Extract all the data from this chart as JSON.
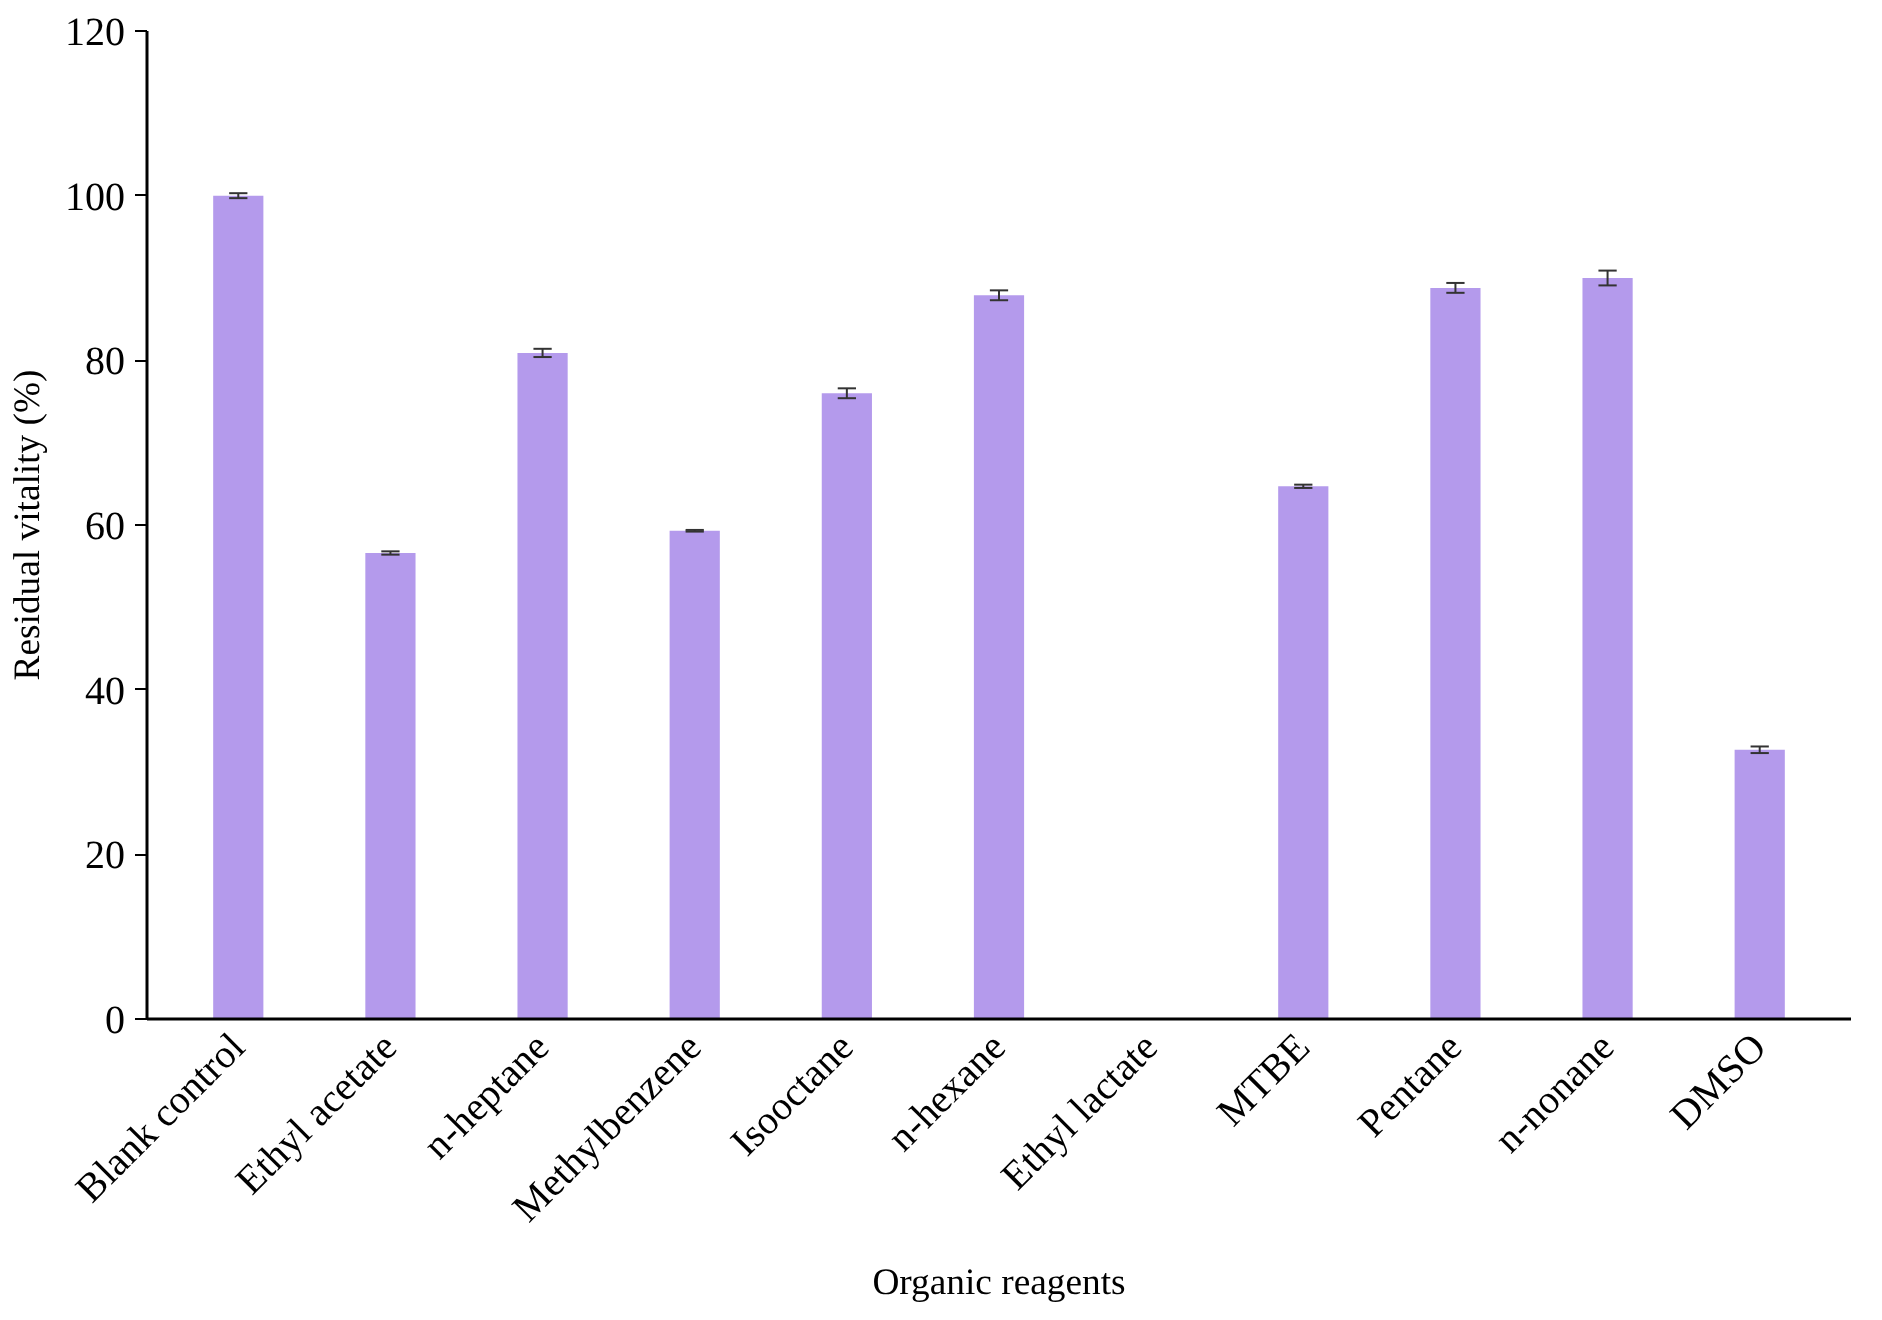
{
  "chart_data": {
    "type": "bar",
    "xlabel": "Organic reagents",
    "ylabel": "Residual vitality (%)",
    "categories": [
      "Blank control",
      "Ethyl acetate",
      "n-heptane",
      "Methylbenzene",
      "Isooctane",
      "n-hexane",
      "Ethyl lactate",
      "MTBE",
      "Pentane",
      "n-nonane",
      "DMSO"
    ],
    "values": [
      100,
      56.6,
      80.9,
      59.3,
      76.0,
      87.9,
      0,
      64.7,
      88.8,
      90.0,
      32.7
    ],
    "errors": [
      0.3,
      0.2,
      0.5,
      0.1,
      0.6,
      0.6,
      null,
      0.2,
      0.6,
      0.9,
      0.4
    ],
    "color": "#b49aec",
    "ylim": [
      0,
      120
    ],
    "yticks": [
      0,
      20,
      40,
      60,
      80,
      100,
      120
    ],
    "grid": false
  }
}
